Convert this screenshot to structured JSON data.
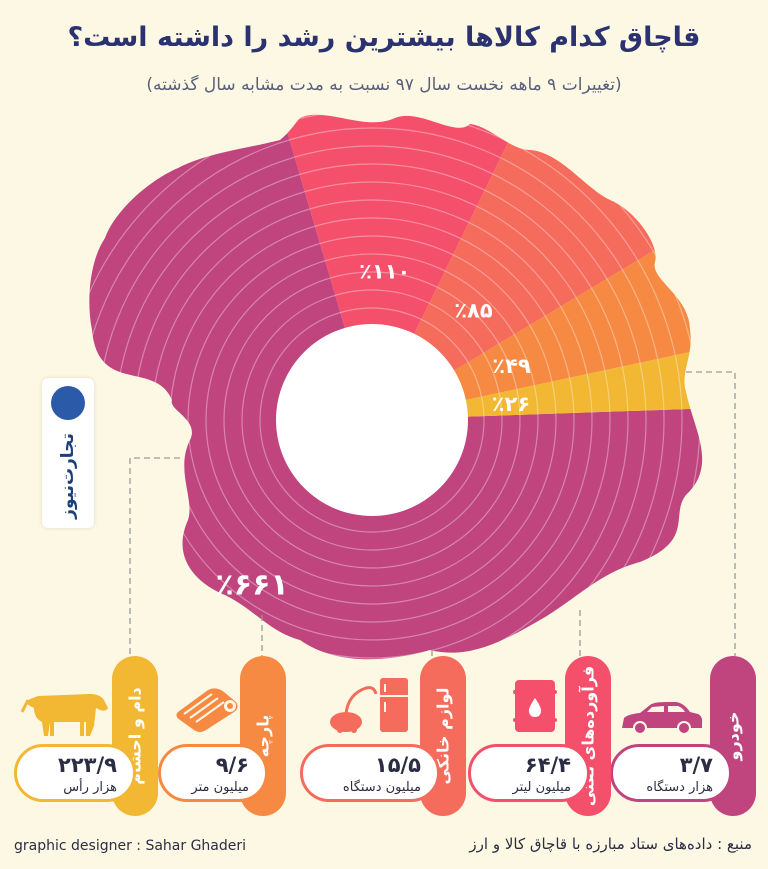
{
  "chart_data": {
    "type": "pie",
    "title": "قاچاق کدام کالاها بیشترین رشد را داشته است؟",
    "subtitle": "(تغییرات ۹ ماهه نخست سال ۹۷ نسبت به مدت مشابه سال گذشته)",
    "categories": [
      "خودرو",
      "فرآورده‌های نفتی",
      "لوازم خانگی",
      "پارچه",
      "دام و احشام"
    ],
    "values": [
      661,
      110,
      85,
      49,
      26
    ],
    "data_labels": [
      "٪۶۶۱",
      "٪۱۱۰",
      "٪۸۵",
      "٪۴۹",
      "٪۲۶"
    ],
    "colors": [
      "#c0457f",
      "#f4506c",
      "#f56b5c",
      "#f68a43",
      "#f2b733"
    ]
  },
  "cards": [
    {
      "label": "خودرو",
      "value": "۳/۷",
      "unit": "هزار دستگاه",
      "icon": "car-icon",
      "color": "#c0457f"
    },
    {
      "label": "فرآورده‌های نفتی",
      "value": "۶۴/۴",
      "unit": "میلیون لیتر",
      "icon": "oil-barrel-icon",
      "color": "#f4506c"
    },
    {
      "label": "لوازم خانگی",
      "value": "۱۵/۵",
      "unit": "میلیون دستگاه",
      "icon": "home-appliance-icon",
      "color": "#f56b5c"
    },
    {
      "label": "پارچه",
      "value": "۹/۶",
      "unit": "میلیون متر",
      "icon": "fabric-roll-icon",
      "color": "#f68a43"
    },
    {
      "label": "دام و احشام",
      "value": "۲۲۳/۹",
      "unit": "هزار رأس",
      "icon": "cow-icon",
      "color": "#f2b733"
    }
  ],
  "logo": {
    "name": "تجارت‌نیوز"
  },
  "footer": {
    "designer": "graphic designer : Sahar Ghaderi",
    "source": "منبع : داده‌های ستاد مبارزه با قاچاق کالا و ارز"
  }
}
